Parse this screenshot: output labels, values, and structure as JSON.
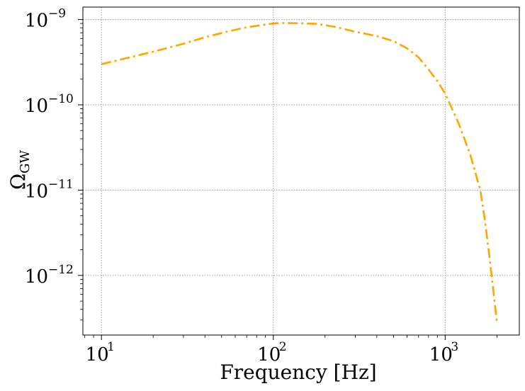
{
  "chart_data": {
    "type": "line",
    "xlabel": "Frequency [Hz]",
    "ylabel_main": "Ω",
    "ylabel_sub": "GW",
    "xscale": "log",
    "yscale": "log",
    "xlim": [
      7.8,
      2700
    ],
    "ylim": [
      2e-13,
      1.4e-09
    ],
    "grid": true,
    "x_ticks": [
      {
        "value": 10,
        "base": "10",
        "exp": "1"
      },
      {
        "value": 100,
        "base": "10",
        "exp": "2"
      },
      {
        "value": 1000,
        "base": "10",
        "exp": "3"
      }
    ],
    "y_ticks": [
      {
        "value": 1e-09,
        "base": "10",
        "exp": "−9"
      },
      {
        "value": 1e-10,
        "base": "10",
        "exp": "−10"
      },
      {
        "value": 1e-11,
        "base": "10",
        "exp": "−11"
      },
      {
        "value": 1e-12,
        "base": "10",
        "exp": "−12"
      }
    ],
    "series": [
      {
        "color": "#FFA500",
        "linestyle": "dashdot",
        "x": [
          10,
          20,
          30,
          40,
          55,
          70,
          85,
          100,
          115,
          140,
          180,
          230,
          300,
          400,
          500,
          600,
          700,
          800,
          900,
          1000,
          1200,
          1400,
          1600,
          1700,
          1800,
          1900,
          2000
        ],
        "y": [
          3e-10,
          4.2e-10,
          5.2e-10,
          6.2e-10,
          7.3e-10,
          8.1e-10,
          8.6e-10,
          9e-10,
          9.1e-10,
          9.05e-10,
          8.9e-10,
          8.2e-10,
          7.2e-10,
          6.4e-10,
          5.6e-10,
          4.6e-10,
          3.6e-10,
          2.6e-10,
          1.9e-10,
          1.35e-10,
          6e-11,
          2.6e-11,
          1e-11,
          4.5e-12,
          1.8e-12,
          7e-13,
          2.8e-13
        ]
      }
    ]
  }
}
